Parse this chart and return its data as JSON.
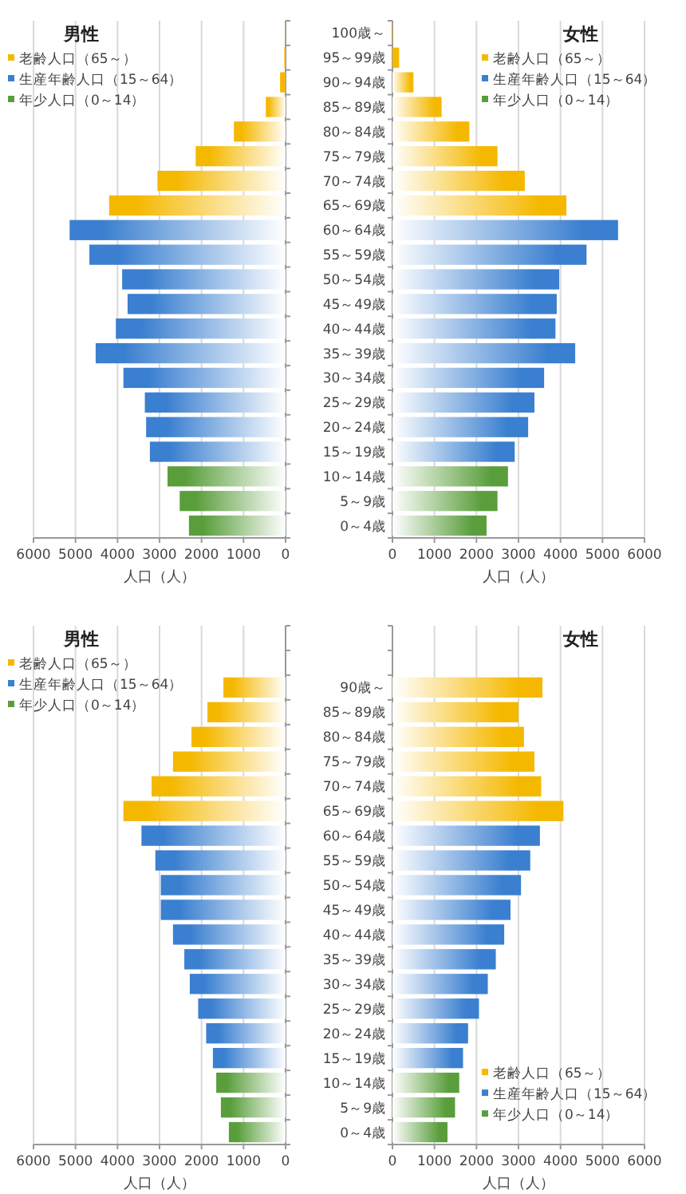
{
  "chart_data": [
    {
      "type": "bar",
      "orientation": "horizontal",
      "stacked": true,
      "title": "男性",
      "xlabel": "人口（人）",
      "tick_labels": "x",
      "grid": "x",
      "legend": "top left",
      "xlim": [
        6000,
        0
      ],
      "xticks": [
        0,
        1000,
        2000,
        3000,
        4000,
        5000,
        6000
      ],
      "categories": [
        null,
        null,
        null,
        null,
        null,
        null,
        null,
        null,
        null,
        null,
        null,
        null,
        null,
        null,
        null,
        null,
        null,
        null,
        null,
        null,
        null
      ],
      "series": [
        {
          "name": "老齢人口（65～）",
          "color": "#f5b800",
          "values": [
            10,
            30,
            130,
            470,
            1230,
            2140,
            3050,
            4200,
            null,
            null,
            null,
            null,
            null,
            null,
            null,
            null,
            null,
            null,
            null,
            null,
            null
          ]
        },
        {
          "name": "生産年齢人口（15～64）",
          "color": "#3a7fd0",
          "values": [
            null,
            null,
            null,
            null,
            null,
            null,
            null,
            null,
            5140,
            4670,
            3890,
            3760,
            4040,
            4520,
            3860,
            3350,
            3320,
            3230,
            null,
            null,
            null
          ]
        },
        {
          "name": "年少人口（0～14）",
          "color": "#5a9e3c",
          "values": [
            null,
            null,
            null,
            null,
            null,
            null,
            null,
            null,
            null,
            null,
            null,
            null,
            null,
            null,
            null,
            null,
            null,
            null,
            2810,
            2520,
            2300
          ]
        }
      ]
    },
    {
      "type": "bar",
      "orientation": "horizontal",
      "stacked": true,
      "title": "女性",
      "xlabel": "人口（人）",
      "grid": "x",
      "legend": "top right",
      "xlim": [
        0,
        6000
      ],
      "xticks": [
        0,
        1000,
        2000,
        3000,
        4000,
        5000,
        6000
      ],
      "categories": [
        "100歳～",
        "95～99歳",
        "90～94歳",
        "85～89歳",
        "80～84歳",
        "75～79歳",
        "70～74歳",
        "65～69歳",
        "60～64歳",
        "55～59歳",
        "50～54歳",
        "45～49歳",
        "40～44歳",
        "35～39歳",
        "30～34歳",
        "25～29歳",
        "20～24歳",
        "15～19歳",
        "10～14歳",
        "5～9歳",
        "0～4歳"
      ],
      "series": [
        {
          "name": "老齢人口（65～）",
          "color": "#f5b800",
          "values": [
            10,
            160,
            500,
            1170,
            1830,
            2500,
            3150,
            4140,
            null,
            null,
            null,
            null,
            null,
            null,
            null,
            null,
            null,
            null,
            null,
            null,
            null
          ]
        },
        {
          "name": "生産年齢人口（15～64）",
          "color": "#3a7fd0",
          "values": [
            null,
            null,
            null,
            null,
            null,
            null,
            null,
            null,
            5370,
            4620,
            3970,
            3910,
            3880,
            4350,
            3610,
            3380,
            3230,
            2910,
            null,
            null,
            null
          ]
        },
        {
          "name": "年少人口（0～14）",
          "color": "#5a9e3c",
          "values": [
            null,
            null,
            null,
            null,
            null,
            null,
            null,
            null,
            null,
            null,
            null,
            null,
            null,
            null,
            null,
            null,
            null,
            null,
            2750,
            2500,
            2240
          ]
        }
      ]
    },
    {
      "type": "bar",
      "orientation": "horizontal",
      "stacked": true,
      "title": "男性",
      "xlabel": "人口（人）",
      "tick_labels": "x",
      "grid": "x",
      "legend": "top left",
      "xlim": [
        6000,
        0
      ],
      "xticks": [
        0,
        1000,
        2000,
        3000,
        4000,
        5000,
        6000
      ],
      "categories": [
        null,
        null,
        null,
        null,
        null,
        null,
        null,
        null,
        null,
        null,
        null,
        null,
        null,
        null,
        null,
        null,
        null,
        null,
        null,
        null,
        null
      ],
      "series": [
        {
          "name": "老齢人口（65～）",
          "color": "#f5b800",
          "values": [
            null,
            null,
            1480,
            1860,
            2240,
            2680,
            3190,
            3860,
            null,
            null,
            null,
            null,
            null,
            null,
            null,
            null,
            null,
            null,
            null,
            null,
            null
          ]
        },
        {
          "name": "生産年齢人口（15～64）",
          "color": "#3a7fd0",
          "values": [
            null,
            null,
            null,
            null,
            null,
            null,
            null,
            null,
            3430,
            3100,
            2970,
            2970,
            2680,
            2410,
            2280,
            2080,
            1890,
            1730,
            null,
            null,
            null
          ]
        },
        {
          "name": "年少人口（0～14）",
          "color": "#5a9e3c",
          "values": [
            null,
            null,
            null,
            null,
            null,
            null,
            null,
            null,
            null,
            null,
            null,
            null,
            null,
            null,
            null,
            null,
            null,
            null,
            1650,
            1540,
            1350
          ]
        }
      ]
    },
    {
      "type": "bar",
      "orientation": "horizontal",
      "stacked": true,
      "title": "女性",
      "xlabel": "人口（人）",
      "grid": "x",
      "legend": "bottom right",
      "xlim": [
        0,
        6000
      ],
      "xticks": [
        0,
        1000,
        2000,
        3000,
        4000,
        5000,
        6000
      ],
      "categories": [
        null,
        null,
        "90歳～",
        "85～89歳",
        "80～84歳",
        "75～79歳",
        "70～74歳",
        "65～69歳",
        "60～64歳",
        "55～59歳",
        "50～54歳",
        "45～49歳",
        "40～44歳",
        "35～39歳",
        "30～34歳",
        "25～29歳",
        "20～24歳",
        "15～19歳",
        "10～14歳",
        "5～9歳",
        "0～4歳"
      ],
      "series": [
        {
          "name": "老齢人口（65～）",
          "color": "#f5b800",
          "values": [
            null,
            null,
            3570,
            3000,
            3130,
            3380,
            3540,
            4070,
            null,
            null,
            null,
            null,
            null,
            null,
            null,
            null,
            null,
            null,
            null,
            null,
            null
          ]
        },
        {
          "name": "生産年齢人口（15～64）",
          "color": "#3a7fd0",
          "values": [
            null,
            null,
            null,
            null,
            null,
            null,
            null,
            null,
            3510,
            3280,
            3060,
            2810,
            2660,
            2460,
            2270,
            2060,
            1800,
            1680,
            null,
            null,
            null
          ]
        },
        {
          "name": "年少人口（0～14）",
          "color": "#5a9e3c",
          "values": [
            null,
            null,
            null,
            null,
            null,
            null,
            null,
            null,
            null,
            null,
            null,
            null,
            null,
            null,
            null,
            null,
            null,
            null,
            1590,
            1490,
            1310
          ]
        }
      ]
    }
  ]
}
